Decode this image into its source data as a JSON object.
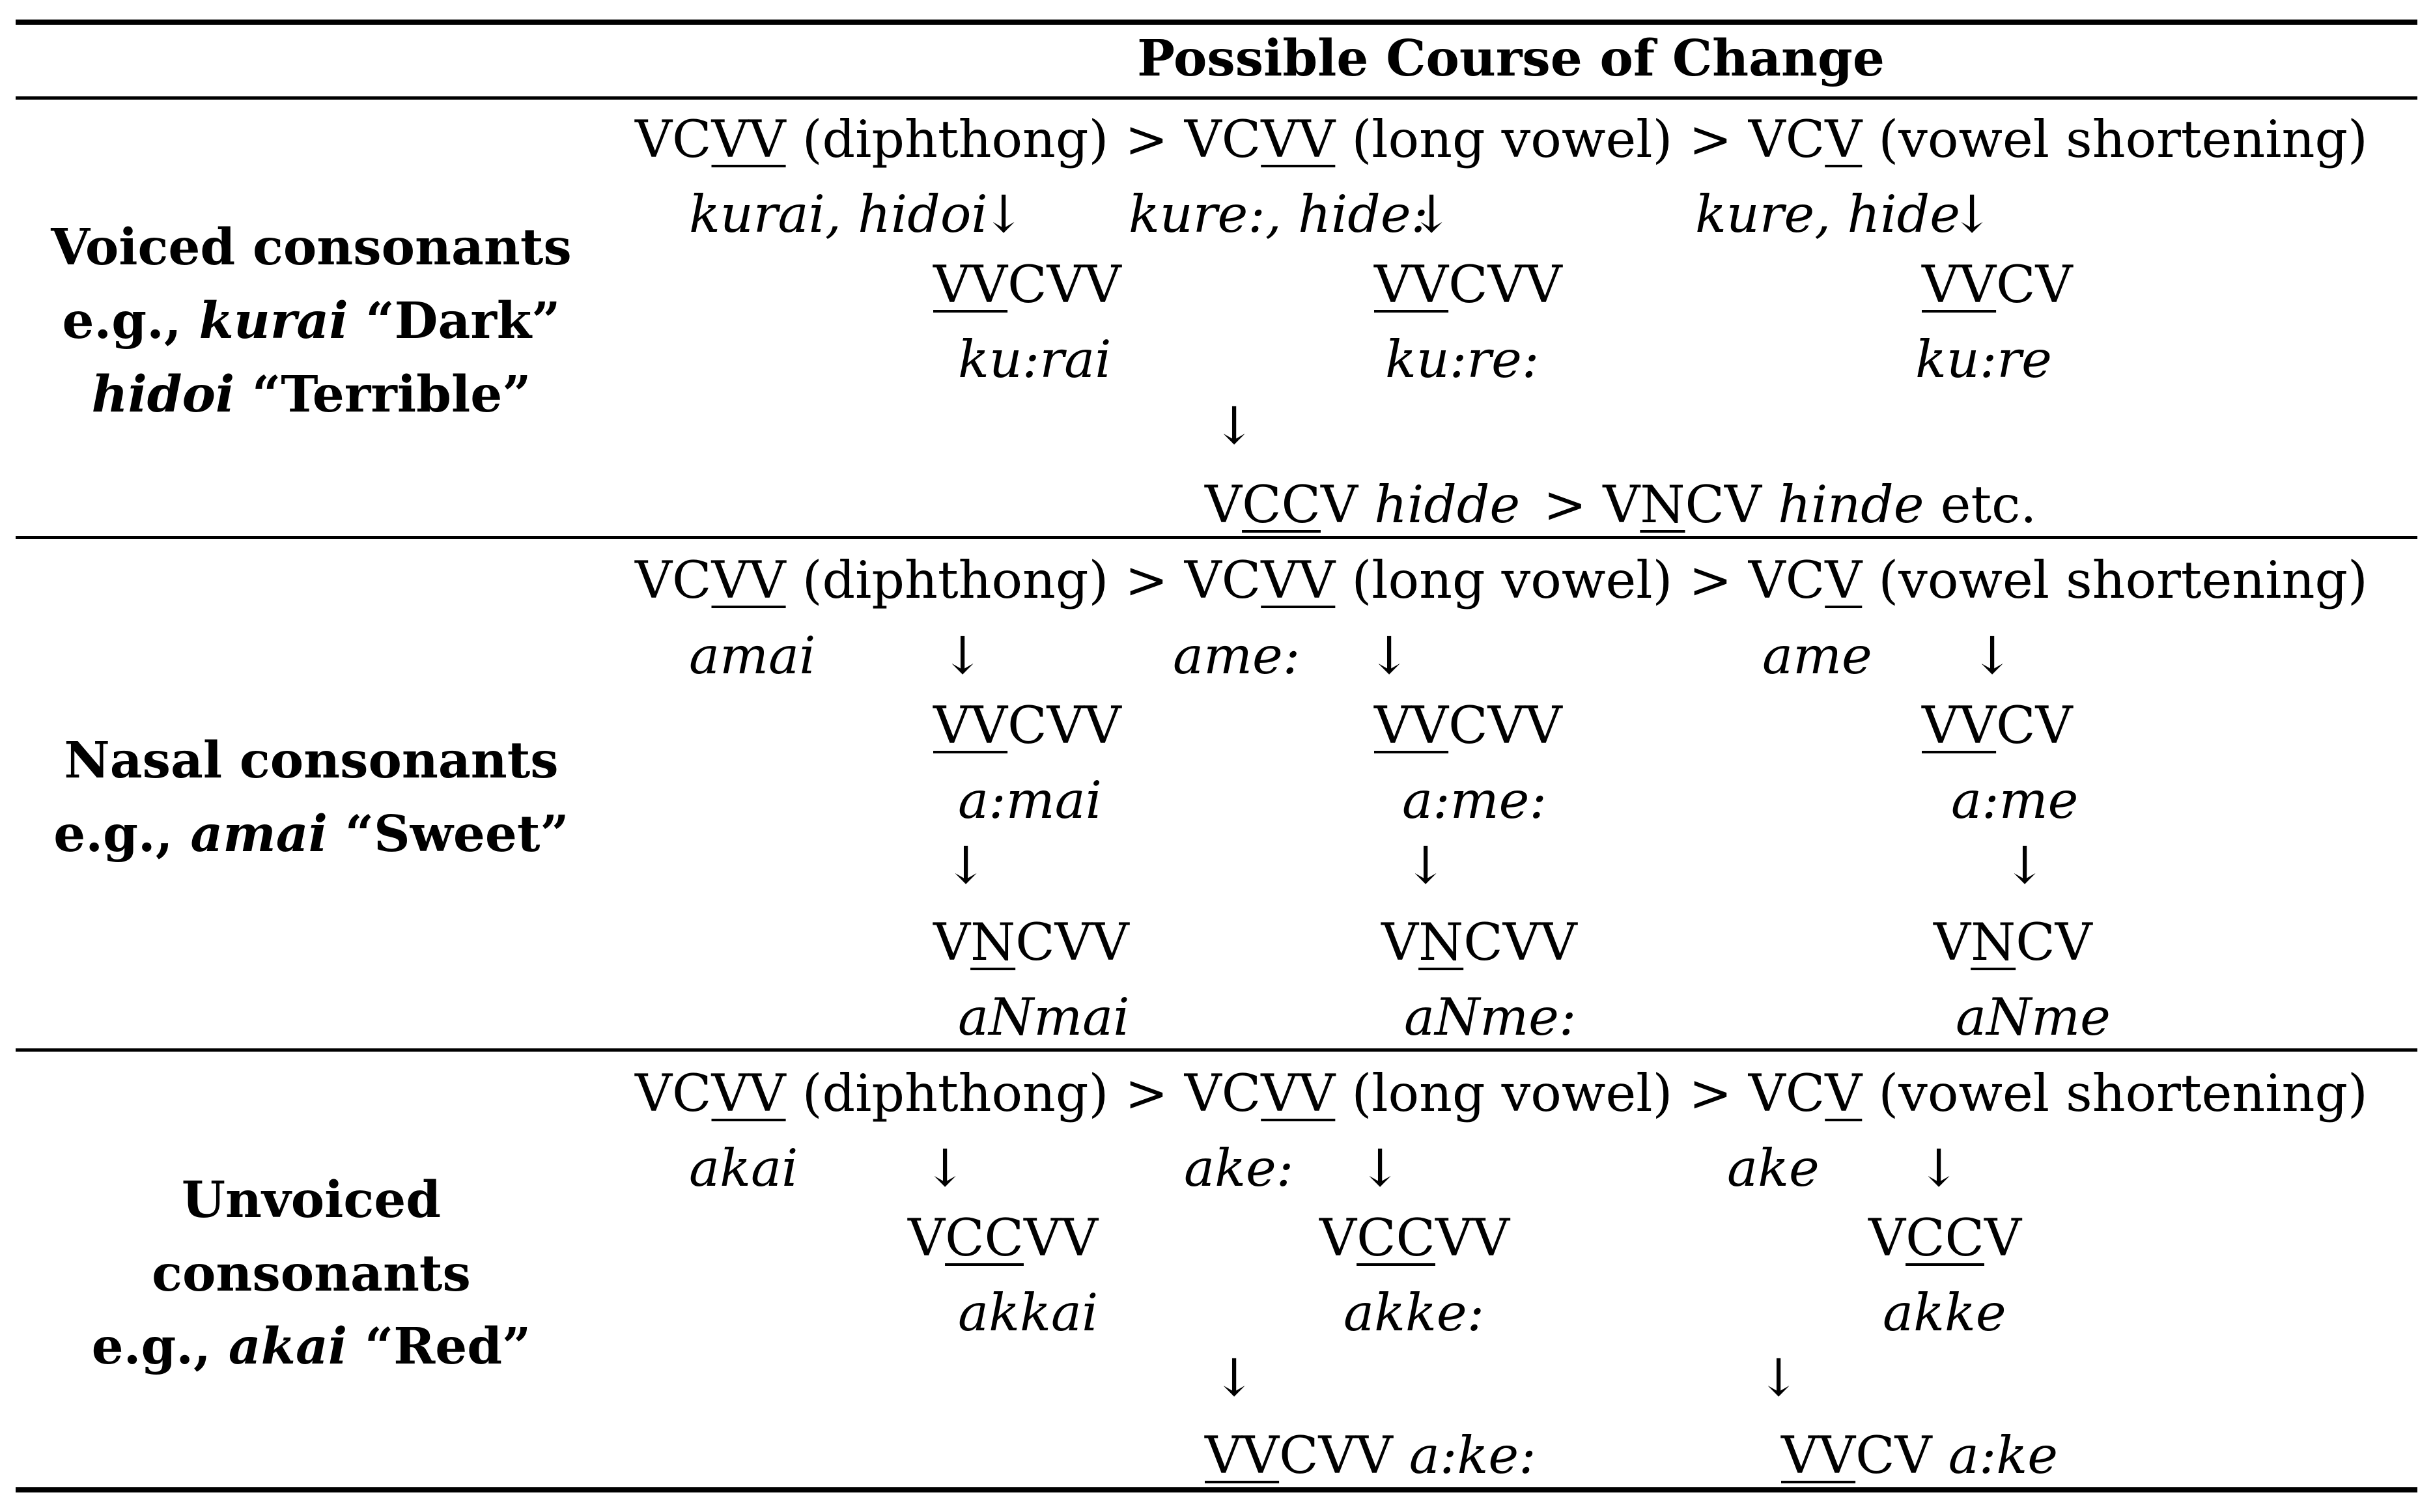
{
  "header": {
    "title": "Possible Course of Change"
  },
  "chain": {
    "a": "VC",
    "a_u": "VV",
    "a_note": " (diphthong) > ",
    "b": "VC",
    "b_u": "VV",
    "b_note": " (long vowel) > ",
    "c": "VC",
    "c_u": "V",
    "c_note": " (vowel shortening)"
  },
  "arrow": "↓",
  "voiced": {
    "label": {
      "line1": "Voiced consonants",
      "eg": "e.g.,",
      "w1": "kurai",
      "g1": "“Dark”",
      "w2": "hidoi",
      "g2": "“Terrible”"
    },
    "ex1": "kurai, hidoi",
    "ex2": "kure:, hide:",
    "ex3": "kure, hide",
    "f1_u": "VV",
    "f1_r": "CVV",
    "f1_ex": "ku:rai",
    "f2_u": "VV",
    "f2_r": "CVV",
    "f2_ex": "ku:re:",
    "f3_u": "VV",
    "f3_r": "CV",
    "f3_ex": "ku:re",
    "bottom": {
      "pre": "V",
      "u": "CC",
      "post": "V ",
      "ex": "hidde",
      "gt": "> V",
      "u2": "N",
      "post2": "CV ",
      "ex2": "hinde",
      "etc": " etc."
    }
  },
  "nasal": {
    "label": {
      "line1": "Nasal consonants",
      "eg": "e.g.,",
      "w1": "amai",
      "g1": "“Sweet”"
    },
    "ex1": "amai",
    "ex2": "ame:",
    "ex3": "ame",
    "f1_u": "VV",
    "f1_r": "CVV",
    "f1_ex": "a:mai",
    "f2_u": "VV",
    "f2_r": "CVV",
    "f2_ex": "a:me:",
    "f3_u": "VV",
    "f3_r": "CV",
    "f3_ex": "a:me",
    "n1_pre": "V",
    "n1_u": "N",
    "n1_r": "CVV",
    "n1_ex": "aNmai",
    "n2_pre": "V",
    "n2_u": "N",
    "n2_r": "CVV",
    "n2_ex": "aNme:",
    "n3_pre": "V",
    "n3_u": "N",
    "n3_r": "CV",
    "n3_ex": "aNme"
  },
  "unvoiced": {
    "label": {
      "line1": "Unvoiced",
      "line2": "consonants",
      "eg": "e.g.,",
      "w1": "akai",
      "g1": "“Red”"
    },
    "ex1": "akai",
    "ex2": "ake:",
    "ex3": "ake",
    "f1_pre": "V",
    "f1_u": "CC",
    "f1_r": "VV",
    "f1_ex": "akkai",
    "f2_pre": "V",
    "f2_u": "CC",
    "f2_r": "VV",
    "f2_ex": "akke:",
    "f3_pre": "V",
    "f3_u": "CC",
    "f3_r": "V",
    "f3_ex": "akke",
    "b1_u": "VV",
    "b1_r": "CVV ",
    "b1_ex": "a:ke:",
    "b2_u": "VV",
    "b2_r": "CV ",
    "b2_ex": "a:ke"
  }
}
